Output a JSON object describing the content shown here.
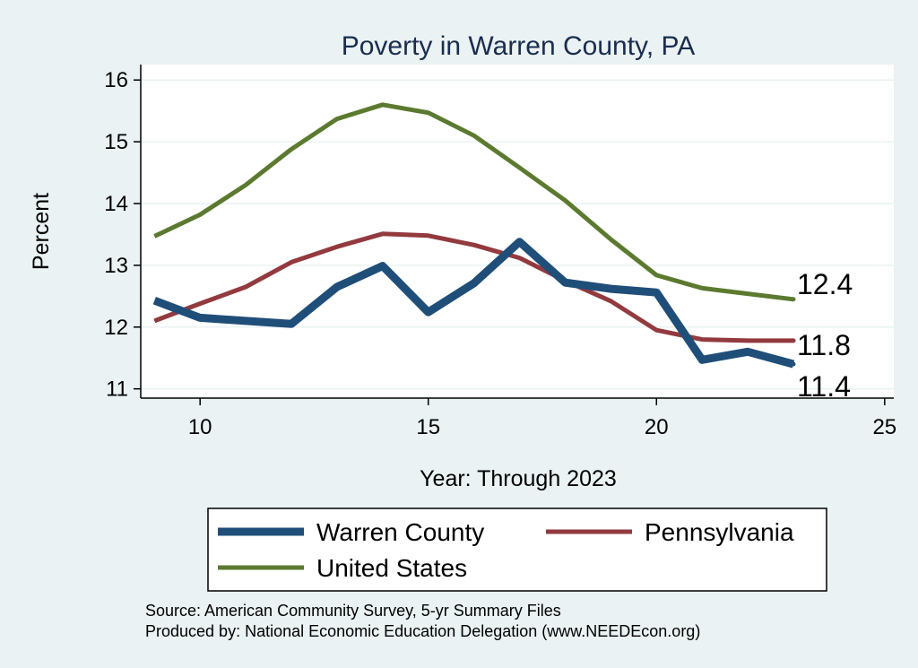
{
  "chart_data": {
    "type": "line",
    "title": "Poverty in Warren County, PA",
    "xlabel": "Year: Through 2023",
    "ylabel": "Percent",
    "xlim": [
      8.7,
      25.2
    ],
    "ylim": [
      10.85,
      16.25
    ],
    "xticks": [
      10,
      15,
      20,
      25
    ],
    "yticks": [
      11,
      12,
      13,
      14,
      15,
      16
    ],
    "grid": true,
    "legend_placement": "bottom",
    "x": [
      9,
      10,
      11,
      12,
      13,
      14,
      15,
      16,
      17,
      18,
      19,
      20,
      21,
      22,
      23
    ],
    "series": [
      {
        "name": "Warren County",
        "color": "#1f4e79",
        "width": 9,
        "values": [
          12.43,
          12.15,
          12.1,
          12.05,
          12.65,
          12.99,
          12.24,
          12.71,
          13.38,
          12.72,
          12.62,
          12.56,
          11.47,
          11.6,
          11.4
        ],
        "end_label": "11.4"
      },
      {
        "name": "Pennsylvania",
        "color": "#923a3e",
        "width": 5,
        "values": [
          12.1,
          12.38,
          12.65,
          13.05,
          13.3,
          13.51,
          13.48,
          13.33,
          13.12,
          12.75,
          12.42,
          11.95,
          11.8,
          11.78,
          11.78
        ],
        "end_label": "11.8"
      },
      {
        "name": "United States",
        "color": "#5b7a2f",
        "width": 5,
        "values": [
          13.47,
          13.82,
          14.3,
          14.88,
          15.37,
          15.6,
          15.47,
          15.1,
          14.58,
          14.05,
          13.42,
          12.84,
          12.63,
          12.54,
          12.45
        ],
        "end_label": "12.4"
      }
    ],
    "notes": [
      "Source: American Community Survey, 5-yr Summary Files",
      "Produced by: National Economic Education Delegation (www.NEEDEcon.org)"
    ]
  }
}
